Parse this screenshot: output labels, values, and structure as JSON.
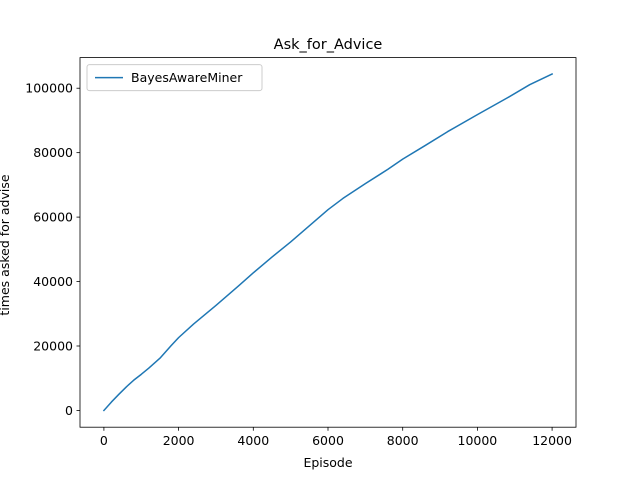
{
  "chart_data": {
    "type": "line",
    "title": "Ask_for_Advice",
    "xlabel": "Episode",
    "ylabel": "times asked for advise",
    "xlim": [
      -640,
      12640
    ],
    "ylim": [
      -5200,
      109500
    ],
    "xticks": [
      0,
      2000,
      4000,
      6000,
      8000,
      10000,
      12000
    ],
    "yticks": [
      0,
      20000,
      40000,
      60000,
      80000,
      100000
    ],
    "grid": false,
    "legend_position": "top-left",
    "series": [
      {
        "name": "BayesAwareMiner",
        "color": "#1f77b4",
        "x": [
          0,
          200,
          400,
          600,
          800,
          1000,
          1200,
          1500,
          1800,
          2000,
          2400,
          3000,
          3600,
          4000,
          4500,
          5000,
          5500,
          6000,
          6400,
          7000,
          7600,
          8000,
          8600,
          9200,
          10000,
          10800,
          11400,
          12000
        ],
        "y": [
          0,
          2600,
          5000,
          7300,
          9400,
          11200,
          13100,
          16200,
          20100,
          22600,
          26800,
          32600,
          38600,
          42700,
          47600,
          52300,
          57300,
          62300,
          65800,
          70400,
          74800,
          78000,
          82200,
          86500,
          91800,
          97000,
          101100,
          104400
        ]
      }
    ]
  }
}
